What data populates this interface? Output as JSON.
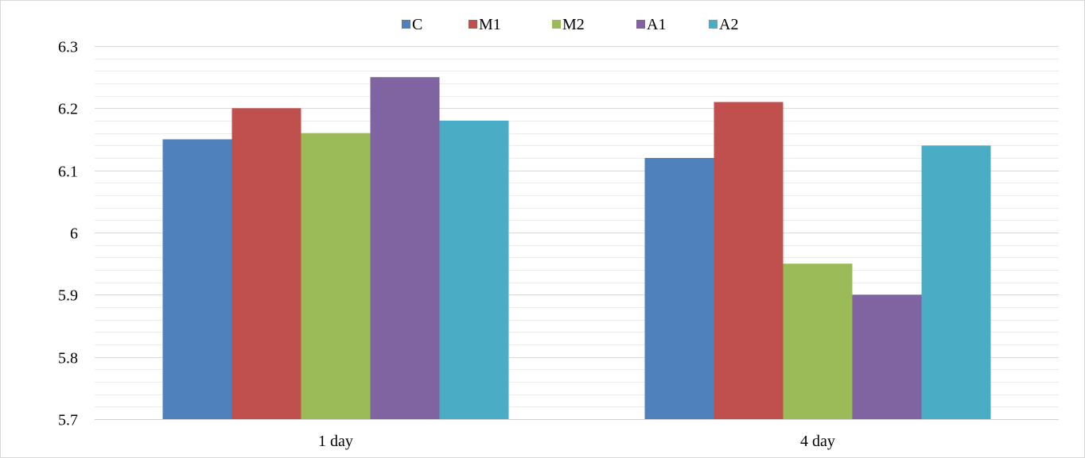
{
  "chart_data": {
    "type": "bar",
    "title": "",
    "xlabel": "",
    "ylabel": "",
    "categories": [
      "1 day",
      "4 day"
    ],
    "series": [
      {
        "name": "C",
        "color": "#4F81BD",
        "values": [
          6.15,
          6.12
        ]
      },
      {
        "name": "M1",
        "color": "#C0504D",
        "values": [
          6.2,
          6.21
        ]
      },
      {
        "name": "M2",
        "color": "#9BBB59",
        "values": [
          6.16,
          5.95
        ]
      },
      {
        "name": "A1",
        "color": "#8064A2",
        "values": [
          6.25,
          5.9
        ]
      },
      {
        "name": "A2",
        "color": "#4BACC6",
        "values": [
          6.18,
          6.14
        ]
      }
    ],
    "ylim": [
      5.7,
      6.3
    ],
    "yticks": [
      "5.7",
      "5.8",
      "5.9",
      "6",
      "6.1",
      "6.2",
      "6.3"
    ],
    "minor_step": 0.02,
    "grid": true,
    "legend_position": "top"
  }
}
